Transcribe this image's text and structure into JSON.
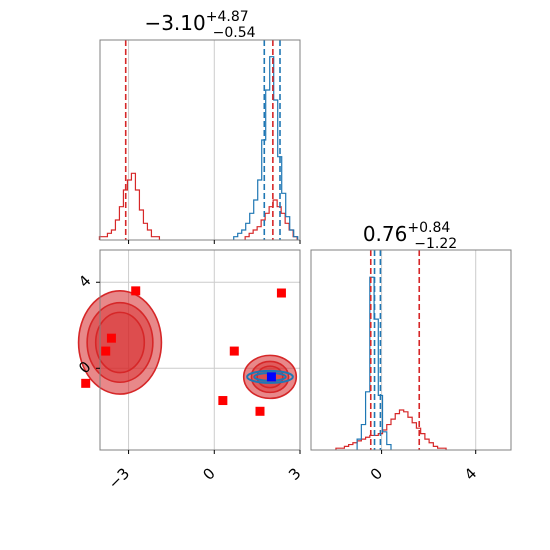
{
  "chart_data": {
    "type": "corner",
    "grid": true,
    "colors": {
      "posterior_a": "#d62728",
      "posterior_b": "#1f77b4",
      "truth": "#ff0000",
      "best": "#0000ff"
    },
    "params": [
      {
        "title": {
          "median": "−3.10",
          "plus": "+4.87",
          "minus": "−0.54"
        },
        "range": [
          -4.0,
          3.0
        ],
        "ticks": [
          -3,
          0,
          3
        ],
        "tick_labels": [
          "−3",
          "0",
          "3"
        ]
      },
      {
        "title": {
          "median": "0.76",
          "plus": "+0.84",
          "minus": "−1.22"
        },
        "range": [
          -3.0,
          5.5
        ],
        "ticks": [
          0,
          4
        ],
        "tick_labels": [
          "0",
          "4"
        ]
      }
    ],
    "hist_1d": [
      {
        "bin_width": 0.14,
        "series": [
          {
            "name": "",
            "color": "#d62728",
            "x": [
              -3.95,
              -3.81,
              -3.67,
              -3.53,
              -3.39,
              -3.25,
              -3.11,
              -2.97,
              -2.83,
              -2.69,
              -2.55,
              -2.41,
              -2.27,
              -2.13,
              -1.99,
              1.15,
              1.29,
              1.43,
              1.57,
              1.71,
              1.85,
              1.99,
              2.13,
              2.27,
              2.41,
              2.55,
              2.69,
              2.83
            ],
            "counts": [
              1,
              1,
              2,
              3,
              6,
              10,
              15,
              18,
              20,
              15,
              9,
              5,
              3,
              1,
              1,
              1,
              2,
              3,
              4,
              6,
              8,
              10,
              12,
              10,
              8,
              5,
              3,
              1
            ]
          },
          {
            "name": "",
            "color": "#1f77b4",
            "x": [
              0.75,
              0.89,
              1.03,
              1.17,
              1.31,
              1.45,
              1.59,
              1.73,
              1.87,
              2.01,
              2.15,
              2.29,
              2.43,
              2.57,
              2.71,
              2.85
            ],
            "counts": [
              1,
              2,
              3,
              5,
              8,
              12,
              18,
              30,
              45,
              55,
              42,
              25,
              14,
              7,
              3,
              1
            ]
          }
        ],
        "ymax": 60,
        "vlines": [
          {
            "x": -3.1,
            "color": "#d62728"
          },
          {
            "x": 1.75,
            "color": "#1f77b4"
          },
          {
            "x": 2.05,
            "color": "#d62728"
          },
          {
            "x": 2.3,
            "color": "#1f77b4"
          }
        ]
      },
      {
        "bin_width": 0.18,
        "series": [
          {
            "name": "",
            "color": "#d62728",
            "x": [
              -1.85,
              -1.67,
              -1.49,
              -1.31,
              -1.13,
              -0.95,
              -0.77,
              -0.59,
              -0.41,
              -0.23,
              -0.05,
              0.13,
              0.31,
              0.49,
              0.67,
              0.85,
              1.03,
              1.21,
              1.39,
              1.57,
              1.75,
              1.93,
              2.11,
              2.29,
              2.47,
              2.65
            ],
            "counts": [
              1,
              1,
              2,
              3,
              4,
              5,
              6,
              7,
              8,
              8,
              9,
              11,
              14,
              17,
              20,
              22,
              21,
              18,
              15,
              12,
              9,
              6,
              4,
              2,
              1,
              1
            ]
          },
          {
            "name": "",
            "color": "#1f77b4",
            "x": [
              -0.95,
              -0.77,
              -0.59,
              -0.41,
              -0.23,
              -0.05,
              0.13,
              0.31
            ],
            "counts": [
              6,
              14,
              32,
              95,
              72,
              30,
              10,
              3
            ]
          }
        ],
        "ymax": 110,
        "vlines": [
          {
            "x": -0.46,
            "color": "#d62728"
          },
          {
            "x": -0.3,
            "color": "#1f77b4"
          },
          {
            "x": -0.05,
            "color": "#1f77b4"
          },
          {
            "x": 1.6,
            "color": "#d62728"
          }
        ]
      }
    ],
    "contours_2d": [
      {
        "cx": -3.3,
        "cy": 1.2,
        "levels": [
          [
            0.85,
            1.4
          ],
          [
            1.15,
            1.85
          ],
          [
            1.45,
            2.4
          ]
        ],
        "color": "#d62728"
      },
      {
        "cx": 1.95,
        "cy": -0.4,
        "levels": [
          [
            0.45,
            0.5
          ],
          [
            0.65,
            0.72
          ],
          [
            0.92,
            1.0
          ]
        ],
        "color": "#d62728"
      },
      {
        "cx": 1.95,
        "cy": -0.4,
        "levels": [
          [
            0.55,
            0.18
          ],
          [
            0.8,
            0.28
          ]
        ],
        "color": "#1f77b4"
      }
    ],
    "truth_points": [
      {
        "x": -3.6,
        "y": 1.4
      },
      {
        "x": -3.8,
        "y": 0.8
      },
      {
        "x": -2.75,
        "y": 3.6
      },
      {
        "x": -4.5,
        "y": -0.7
      },
      {
        "x": 0.7,
        "y": 0.8
      },
      {
        "x": 0.3,
        "y": -1.5
      },
      {
        "x": 1.6,
        "y": -2.0
      },
      {
        "x": 2.35,
        "y": 3.5
      }
    ],
    "best_point": {
      "x": 2.0,
      "y": -0.4
    }
  }
}
